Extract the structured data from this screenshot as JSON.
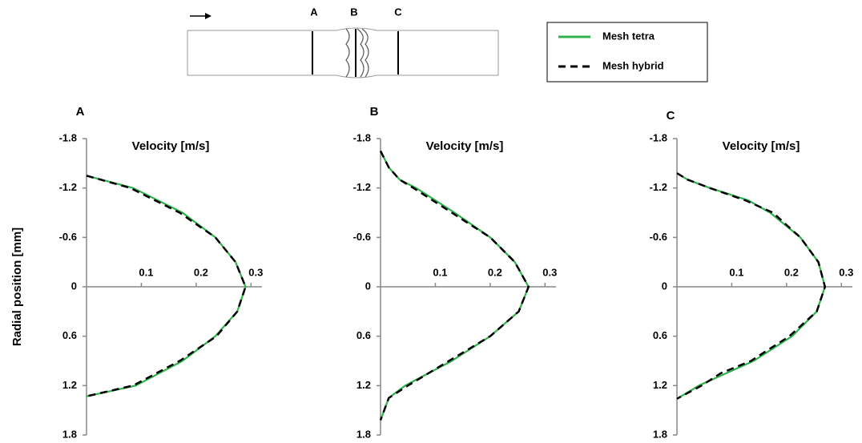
{
  "diagram": {
    "labels": [
      "A",
      "B",
      "C"
    ]
  },
  "chart_data": [
    {
      "type": "line",
      "title": "A",
      "x_label": "Velocity  [m/s]",
      "y_label": "Radial position [mm]",
      "xlim": [
        0,
        0.32
      ],
      "xticks": [
        0.1,
        0.2,
        0.3
      ],
      "ylim": [
        -1.8,
        1.8
      ],
      "yticks": [
        -1.8,
        -1.2,
        -0.6,
        0,
        0.6,
        1.2,
        1.8
      ],
      "series": [
        {
          "name": "Mesh tetra",
          "color": "#2db34a",
          "dashed": false,
          "positions": [
            -1.35,
            -1.2,
            -0.9,
            -0.6,
            -0.3,
            0,
            0.3,
            0.6,
            0.9,
            1.2,
            1.33
          ],
          "values": [
            0,
            0.085,
            0.175,
            0.235,
            0.272,
            0.29,
            0.275,
            0.235,
            0.175,
            0.09,
            0
          ]
        },
        {
          "name": "Mesh hybrid",
          "color": "#000000",
          "dashed": true,
          "positions": [
            -1.35,
            -1.2,
            -0.9,
            -0.6,
            -0.3,
            0,
            0.3,
            0.6,
            0.9,
            1.2,
            1.33
          ],
          "values": [
            0,
            0.08,
            0.17,
            0.235,
            0.272,
            0.29,
            0.275,
            0.237,
            0.17,
            0.085,
            0
          ]
        }
      ]
    },
    {
      "type": "line",
      "title": "B",
      "x_label": "Velocity  [m/s]",
      "xlim": [
        0,
        0.32
      ],
      "xticks": [
        0.1,
        0.2,
        0.3
      ],
      "ylim": [
        -1.8,
        1.8
      ],
      "yticks": [
        -1.8,
        -1.2,
        -0.6,
        0,
        0.6,
        1.2,
        1.8
      ],
      "series": [
        {
          "color": "#2db34a",
          "dashed": false,
          "positions": [
            -1.65,
            -1.45,
            -1.3,
            -1.2,
            -0.9,
            -0.6,
            -0.3,
            0,
            0.3,
            0.6,
            0.9,
            1.2,
            1.35,
            1.62
          ],
          "values": [
            0,
            0.015,
            0.035,
            0.065,
            0.135,
            0.2,
            0.245,
            0.27,
            0.252,
            0.2,
            0.13,
            0.045,
            0.015,
            0
          ]
        },
        {
          "color": "#000000",
          "dashed": true,
          "positions": [
            -1.65,
            -1.45,
            -1.3,
            -1.2,
            -0.9,
            -0.6,
            -0.3,
            0,
            0.3,
            0.6,
            0.9,
            1.2,
            1.35,
            1.62
          ],
          "values": [
            0,
            0.015,
            0.035,
            0.06,
            0.13,
            0.2,
            0.245,
            0.27,
            0.252,
            0.2,
            0.125,
            0.05,
            0.015,
            0
          ]
        }
      ]
    },
    {
      "type": "line",
      "title": "C",
      "x_label": "Velocity  [m/s]",
      "xlim": [
        0,
        0.32
      ],
      "xticks": [
        0.1,
        0.2,
        0.3
      ],
      "ylim": [
        -1.8,
        1.8
      ],
      "yticks": [
        -1.8,
        -1.2,
        -0.6,
        0,
        0.6,
        1.2,
        1.8
      ],
      "series": [
        {
          "color": "#2db34a",
          "dashed": false,
          "positions": [
            -1.38,
            -1.3,
            -1.2,
            -1.05,
            -0.9,
            -0.6,
            -0.3,
            0,
            0.3,
            0.6,
            0.9,
            1.05,
            1.2,
            1.36
          ],
          "values": [
            0,
            0.02,
            0.06,
            0.13,
            0.17,
            0.225,
            0.258,
            0.27,
            0.255,
            0.21,
            0.14,
            0.09,
            0.04,
            0
          ]
        },
        {
          "color": "#000000",
          "dashed": true,
          "positions": [
            -1.38,
            -1.3,
            -1.2,
            -1.05,
            -0.9,
            -0.6,
            -0.3,
            0,
            0.3,
            0.6,
            0.9,
            1.05,
            1.2,
            1.36
          ],
          "values": [
            0,
            0.02,
            0.06,
            0.125,
            0.175,
            0.225,
            0.258,
            0.27,
            0.255,
            0.205,
            0.135,
            0.08,
            0.045,
            0
          ]
        }
      ]
    }
  ]
}
